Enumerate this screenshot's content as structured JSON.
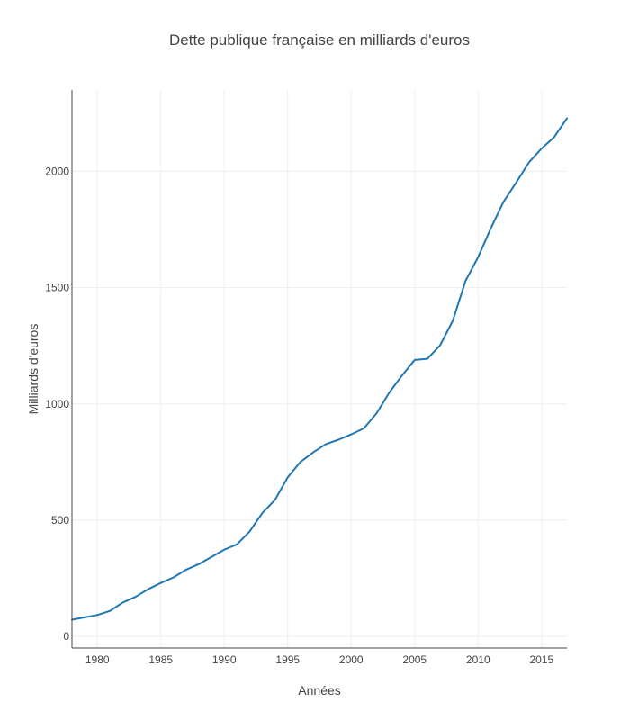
{
  "chart_data": {
    "type": "line",
    "title": "Dette publique française en milliards d'euros",
    "xlabel": "Années",
    "ylabel": "Milliards d'euros",
    "xlim": [
      1978,
      2017
    ],
    "ylim": [
      -50,
      2350
    ],
    "xticks": [
      1980,
      1985,
      1990,
      1995,
      2000,
      2005,
      2010,
      2015
    ],
    "yticks": [
      0,
      500,
      1000,
      1500,
      2000
    ],
    "grid": true,
    "legend": "none",
    "color": "#1f77b4",
    "x": [
      1978,
      1979,
      1980,
      1981,
      1982,
      1983,
      1984,
      1985,
      1986,
      1987,
      1988,
      1989,
      1990,
      1991,
      1992,
      1993,
      1994,
      1995,
      1996,
      1997,
      1998,
      1999,
      2000,
      2001,
      2002,
      2003,
      2004,
      2005,
      2006,
      2007,
      2008,
      2009,
      2010,
      2011,
      2012,
      2013,
      2014,
      2015,
      2016,
      2017
    ],
    "values": [
      72,
      82,
      92,
      110,
      146,
      170,
      203,
      230,
      254,
      287,
      311,
      342,
      373,
      396,
      451,
      531,
      587,
      684,
      750,
      791,
      827,
      846,
      869,
      895,
      960,
      1049,
      1122,
      1189,
      1194,
      1252,
      1357,
      1528,
      1631,
      1755,
      1869,
      1952,
      2038,
      2098,
      2148,
      2228
    ]
  }
}
